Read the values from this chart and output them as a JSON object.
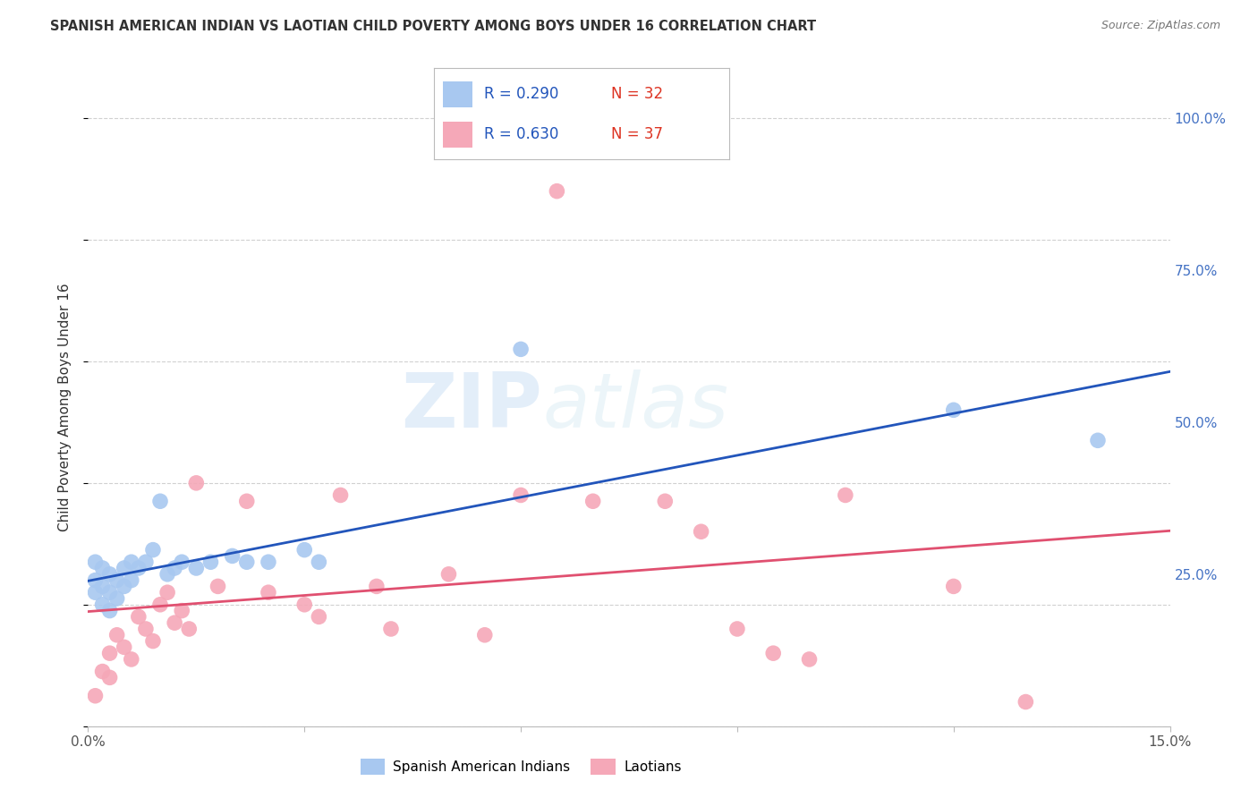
{
  "title": "SPANISH AMERICAN INDIAN VS LAOTIAN CHILD POVERTY AMONG BOYS UNDER 16 CORRELATION CHART",
  "source": "Source: ZipAtlas.com",
  "ylabel": "Child Poverty Among Boys Under 16",
  "xlim": [
    0.0,
    0.15
  ],
  "ylim": [
    0.0,
    1.05
  ],
  "ytick_positions": [
    0.0,
    0.25,
    0.5,
    0.75,
    1.0
  ],
  "ytick_labels_right": [
    "",
    "25.0%",
    "50.0%",
    "75.0%",
    "100.0%"
  ],
  "watermark_zip": "ZIP",
  "watermark_atlas": "atlas",
  "legend_r1": "R = 0.290",
  "legend_n1": "N = 32",
  "legend_r2": "R = 0.630",
  "legend_n2": "N = 37",
  "legend_label1": "Spanish American Indians",
  "legend_label2": "Laotians",
  "color_blue": "#A8C8F0",
  "color_pink": "#F5A8B8",
  "line_color_blue": "#2255BB",
  "line_color_pink": "#E05070",
  "blue_x": [
    0.001,
    0.001,
    0.001,
    0.002,
    0.002,
    0.002,
    0.003,
    0.003,
    0.003,
    0.004,
    0.004,
    0.005,
    0.005,
    0.006,
    0.006,
    0.007,
    0.008,
    0.009,
    0.01,
    0.011,
    0.012,
    0.013,
    0.015,
    0.017,
    0.02,
    0.022,
    0.025,
    0.03,
    0.032,
    0.06,
    0.12,
    0.14
  ],
  "blue_y": [
    0.27,
    0.24,
    0.22,
    0.26,
    0.23,
    0.2,
    0.25,
    0.22,
    0.19,
    0.24,
    0.21,
    0.26,
    0.23,
    0.27,
    0.24,
    0.26,
    0.27,
    0.29,
    0.37,
    0.25,
    0.26,
    0.27,
    0.26,
    0.27,
    0.28,
    0.27,
    0.27,
    0.29,
    0.27,
    0.62,
    0.52,
    0.47
  ],
  "pink_x": [
    0.001,
    0.002,
    0.003,
    0.003,
    0.004,
    0.005,
    0.006,
    0.007,
    0.008,
    0.009,
    0.01,
    0.011,
    0.012,
    0.013,
    0.014,
    0.015,
    0.018,
    0.022,
    0.025,
    0.03,
    0.032,
    0.035,
    0.04,
    0.042,
    0.05,
    0.055,
    0.06,
    0.065,
    0.07,
    0.08,
    0.085,
    0.09,
    0.095,
    0.1,
    0.105,
    0.12,
    0.13
  ],
  "pink_y": [
    0.05,
    0.09,
    0.08,
    0.12,
    0.15,
    0.13,
    0.11,
    0.18,
    0.16,
    0.14,
    0.2,
    0.22,
    0.17,
    0.19,
    0.16,
    0.4,
    0.23,
    0.37,
    0.22,
    0.2,
    0.18,
    0.38,
    0.23,
    0.16,
    0.25,
    0.15,
    0.38,
    0.88,
    0.37,
    0.37,
    0.32,
    0.16,
    0.12,
    0.11,
    0.38,
    0.23,
    0.04
  ],
  "grid_color": "#CCCCCC",
  "background_color": "#FFFFFF",
  "title_color": "#333333",
  "source_color": "#777777",
  "ylabel_color": "#333333",
  "tick_color": "#4472C4",
  "xtick_color": "#555555"
}
